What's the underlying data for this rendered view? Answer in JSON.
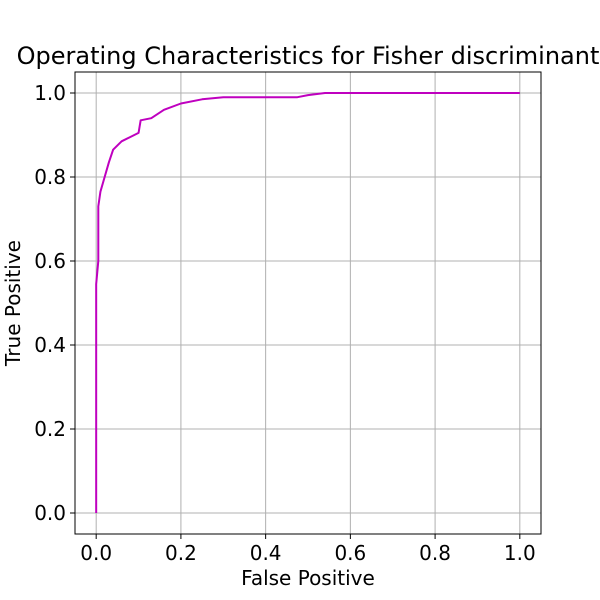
{
  "chart_data": {
    "type": "line",
    "title": "Operating Characteristics for Fisher discriminant",
    "xlabel": "False Positive",
    "ylabel": "True Positive",
    "xlim": [
      -0.05,
      1.05
    ],
    "ylim": [
      -0.05,
      1.05
    ],
    "xticks": [
      0.0,
      0.2,
      0.4,
      0.6,
      0.8,
      1.0
    ],
    "yticks": [
      0.0,
      0.2,
      0.4,
      0.6,
      0.8,
      1.0
    ],
    "xtick_labels": [
      "0.0",
      "0.2",
      "0.4",
      "0.6",
      "0.8",
      "1.0"
    ],
    "ytick_labels": [
      "0.0",
      "0.2",
      "0.4",
      "0.6",
      "0.8",
      "1.0"
    ],
    "grid": true,
    "series": [
      {
        "color": "#bf00bf",
        "x": [
          0.0,
          0.0,
          0.0,
          0.005,
          0.005,
          0.005,
          0.01,
          0.02,
          0.03,
          0.04,
          0.06,
          0.08,
          0.1,
          0.105,
          0.13,
          0.16,
          0.2,
          0.25,
          0.3,
          0.35,
          0.4,
          0.475,
          0.5,
          0.54,
          0.6,
          0.7,
          0.8,
          0.9,
          1.0
        ],
        "y": [
          0.0,
          0.28,
          0.545,
          0.6,
          0.725,
          0.73,
          0.765,
          0.8,
          0.835,
          0.865,
          0.885,
          0.895,
          0.905,
          0.935,
          0.94,
          0.96,
          0.975,
          0.985,
          0.99,
          0.99,
          0.99,
          0.99,
          0.995,
          1.0,
          1.0,
          1.0,
          1.0,
          1.0,
          1.0
        ]
      }
    ]
  }
}
